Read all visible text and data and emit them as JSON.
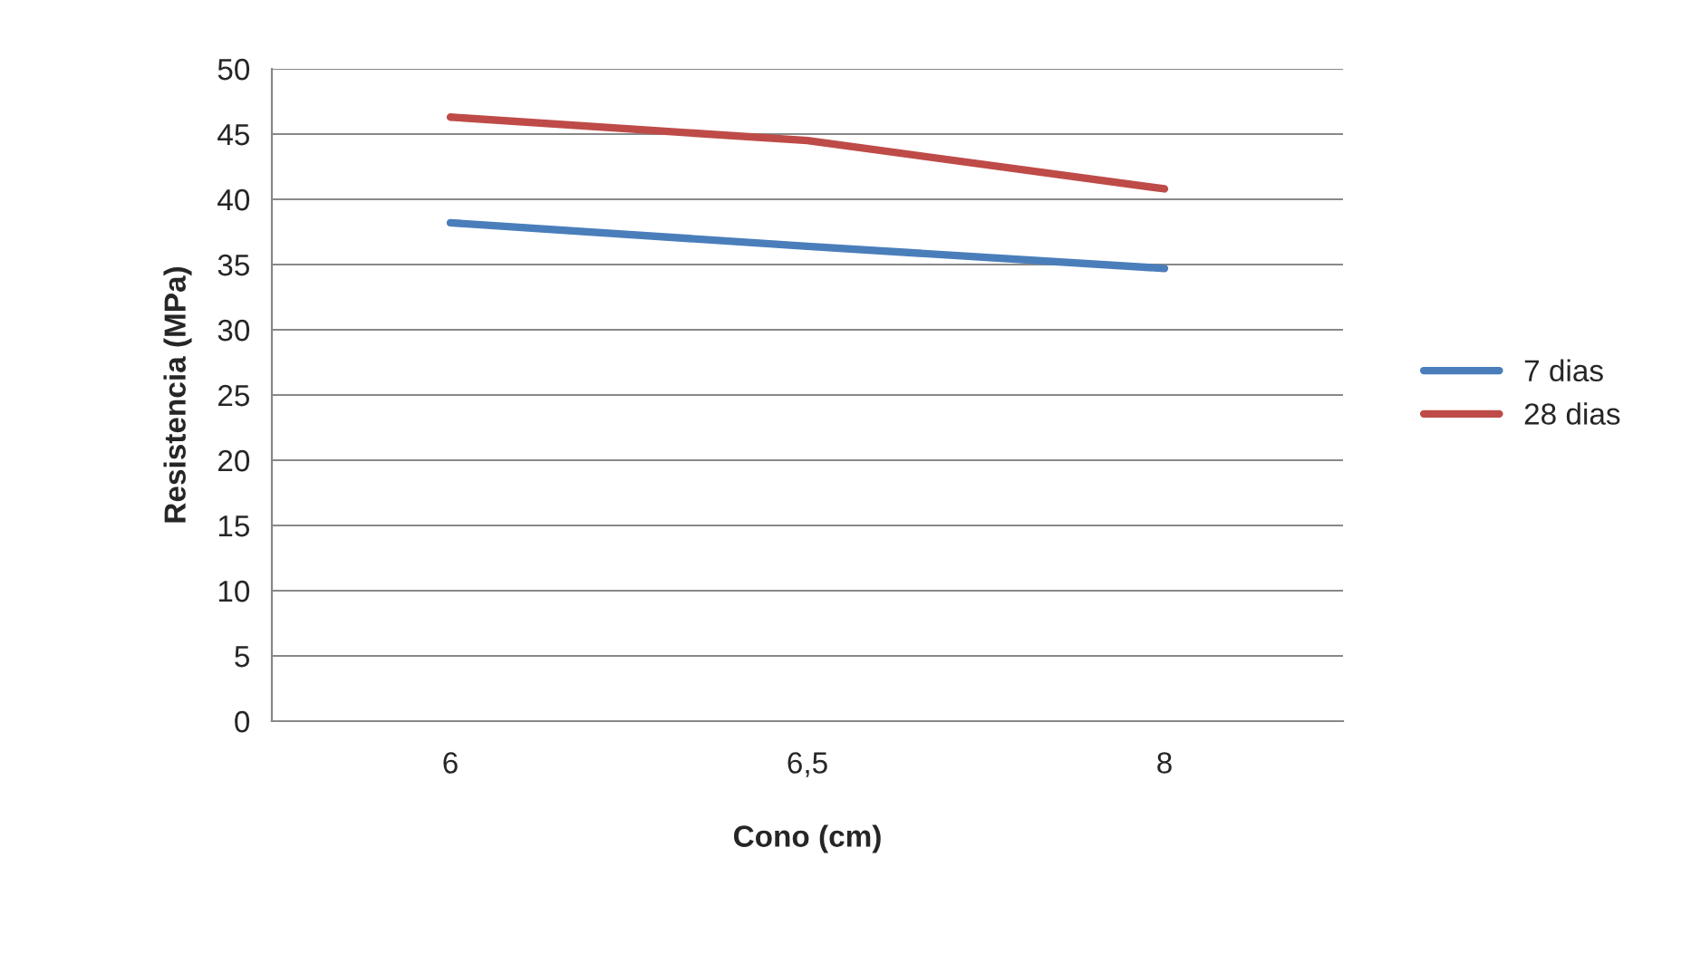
{
  "chart_data": {
    "type": "line",
    "xlabel": "Cono (cm)",
    "ylabel": "Resistencia (MPa)",
    "categories": [
      "6",
      "6,5",
      "8"
    ],
    "series": [
      {
        "name": "7 dias",
        "color": "#4a7ebb",
        "values": [
          38.2,
          36.4,
          34.7
        ]
      },
      {
        "name": "28 dias",
        "color": "#be4b48",
        "values": [
          46.3,
          44.5,
          40.8
        ]
      }
    ],
    "ylim": [
      0,
      50
    ],
    "yticks": [
      0,
      5,
      10,
      15,
      20,
      25,
      30,
      35,
      40,
      45,
      50
    ],
    "grid": "y",
    "legend": "right",
    "marker": "none",
    "line_style": "solid"
  }
}
